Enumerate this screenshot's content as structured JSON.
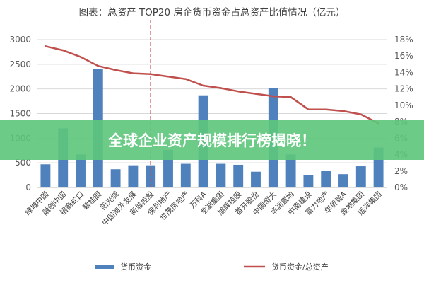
{
  "chart_data": {
    "type": "bar",
    "title": "图表：总资产 TOP20 房企货币资金占总资产比值情况（亿元）",
    "categories": [
      "绿城中国",
      "融创中国",
      "招商蛇口",
      "碧桂园",
      "阳光城",
      "中国海外发展",
      "新城控股",
      "保利地产",
      "世茂房地产",
      "万科A",
      "龙湖集团",
      "旭辉控股",
      "首开股份",
      "中国恒大",
      "华润置地",
      "中南建设",
      "富力地产",
      "华侨城A",
      "金地集团",
      "远洋集团"
    ],
    "series": [
      {
        "name": "货币资金",
        "axis": "left",
        "values": [
          470,
          1200,
          670,
          2400,
          370,
          450,
          450,
          760,
          480,
          1870,
          480,
          460,
          320,
          2020,
          670,
          250,
          330,
          270,
          430,
          810
        ]
      },
      {
        "name": "货币资金/总资产",
        "axis": "right",
        "unit": "%",
        "values": [
          17.2,
          16.7,
          15.9,
          14.8,
          14.3,
          13.9,
          13.8,
          13.5,
          13.2,
          12.4,
          12.1,
          11.7,
          11.4,
          11.1,
          11.0,
          9.5,
          9.5,
          9.3,
          8.9,
          7.8
        ]
      }
    ],
    "ylim_left": [
      0,
      3000
    ],
    "yticks_left": [
      "0",
      "500",
      "1000",
      "1500",
      "2000",
      "2500",
      "3000"
    ],
    "ylim_right": [
      0,
      18
    ],
    "yticks_right": [
      "0%",
      "2%",
      "4%",
      "6%",
      "8%",
      "10%",
      "12%",
      "14%",
      "16%",
      "18%"
    ],
    "divider_after_index": 6,
    "grid": true,
    "legend_position": "bottom",
    "colors": {
      "bar": "#4f81bd",
      "line": "#c0504d",
      "divider": "#c0504d"
    }
  },
  "banner": {
    "text": "全球企业资产规模排行榜揭晓！",
    "color": "#5cc67a"
  }
}
